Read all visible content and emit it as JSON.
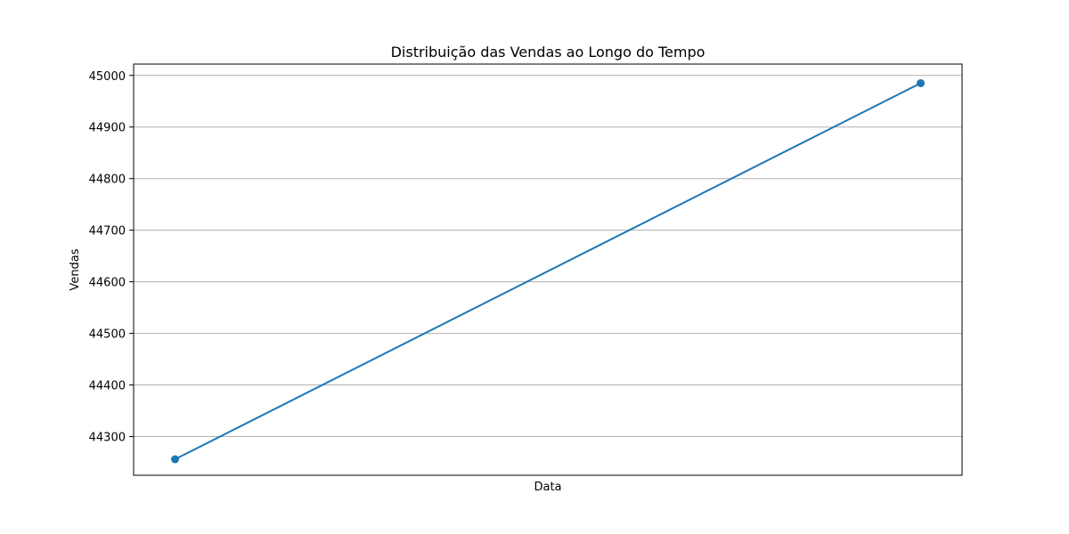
{
  "chart_data": {
    "type": "line",
    "title": "Distribuição das Vendas ao Longo do Tempo",
    "xlabel": "Data",
    "ylabel": "Vendas",
    "x": [
      0,
      1
    ],
    "x_tick_labels": [],
    "ylim": [
      44225,
      45022
    ],
    "yticks": [
      44300,
      44400,
      44500,
      44600,
      44700,
      44800,
      44900,
      45000
    ],
    "grid": "y",
    "legend": "none",
    "series": [
      {
        "values": [
          44256,
          44985
        ],
        "color": "#1f77b4",
        "marker": "circle"
      }
    ]
  }
}
